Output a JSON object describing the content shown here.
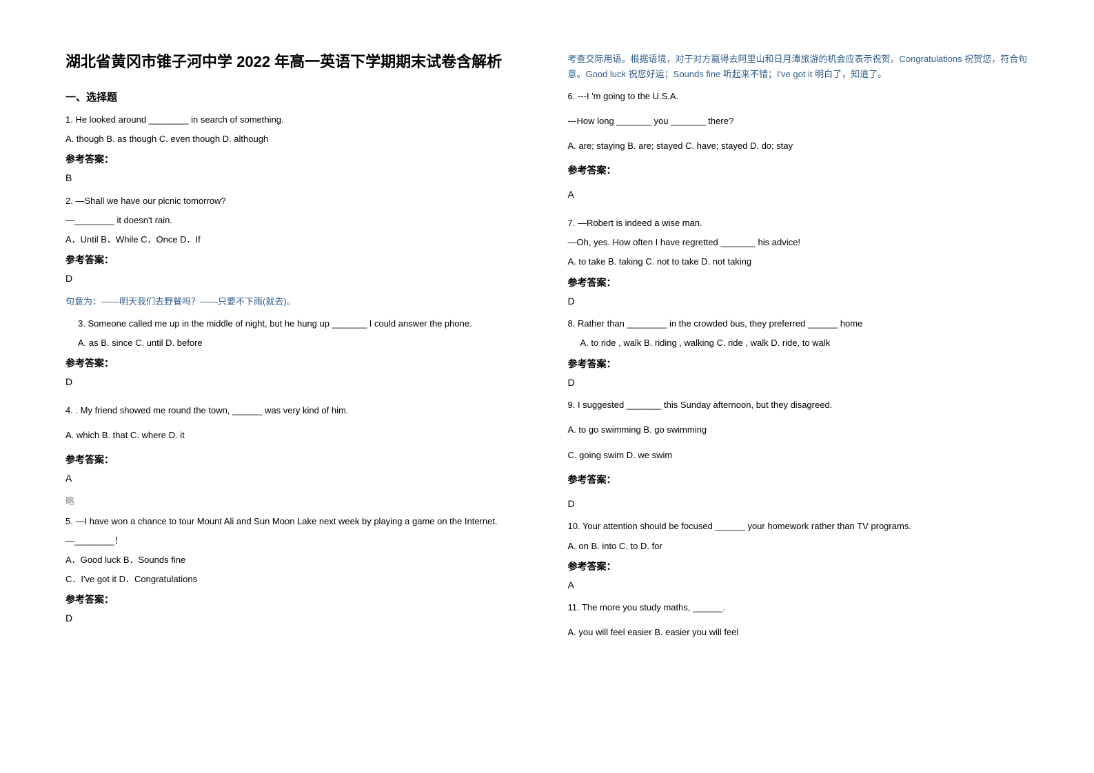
{
  "title": "湖北省黄冈市锥子河中学 2022 年高一英语下学期期末试卷含解析",
  "section_header": "一、选择题",
  "answer_label": "参考答案：",
  "omit_label": "略",
  "left_column": {
    "q1": {
      "text": "1. He looked around ________ in search of something.",
      "options": "A. though               B. as though    C. even though    D. although",
      "answer": "B"
    },
    "q2": {
      "text": "2. —Shall we have our picnic tomorrow?",
      "text2": "—________ it doesn't rain.",
      "options": "A．Until    B．While      C．Once    D．If",
      "answer": "D",
      "explanation": "句意为：——明天我们去野餐吗？——只要不下雨(就去)。"
    },
    "q3": {
      "text": "3. Someone called me up in the middle of night, but he hung up _______ I could answer the phone.",
      "options": "A. as                    B. since                    C. until                    D. before",
      "answer": "D"
    },
    "q4": {
      "text": "4. . My friend showed me round the town, ______ was very kind of him.",
      "options": "A. which       B. that        C. where       D. it",
      "answer": "A"
    },
    "q5": {
      "text": "5. —I have won a chance to tour Mount Ali and Sun Moon Lake next week by playing a game on the Internet.",
      "text2": "—________！",
      "options1": "A．Good luck          B．Sounds fine",
      "options2": "C．I've got it           D．Congratulations",
      "answer": "D"
    }
  },
  "right_column": {
    "explanation_top": "考查交际用语。根据语境，对于对方赢得去阿里山和日月潭旅游的机会应表示祝贺。Congratulations 祝贺您，符合句意。Good luck 祝您好运；Sounds fine 听起来不错；I've got it 明白了，知道了。",
    "q6": {
      "text": "6. ---I 'm going to the U.S.A.",
      "text2": "---How long _______ you _______ there?",
      "options": "A. are; staying   B. are; stayed   C. have; stayed  D. do; stay",
      "answer": "A"
    },
    "q7": {
      "text": "7. —Robert is indeed a wise man.",
      "text2": "—Oh, yes. How often I have regretted _______ his advice!",
      "options": "A. to take       B. taking       C. not to take    D. not taking",
      "answer": "D"
    },
    "q8": {
      "text": "8. Rather than ________ in the crowded bus, they preferred ______ home",
      "options": "A. to ride , walk              B. riding , walking      C. ride , walk                    D. ride, to walk",
      "answer": "D"
    },
    "q9": {
      "text": "9. I suggested _______ this Sunday afternoon, but they disagreed.",
      "options1": "A. to go swimming             B. go swimming",
      "options2": "C. going swim          D. we swim",
      "answer": "D"
    },
    "q10": {
      "text": "10. Your attention should be focused ______ your homework rather than TV programs.",
      "options": "A. on   B. into   C. to    D. for",
      "answer": "A"
    },
    "q11": {
      "text": "11. The more you study maths, ______.",
      "options": " A. you will feel easier        B. easier you will feel"
    }
  }
}
